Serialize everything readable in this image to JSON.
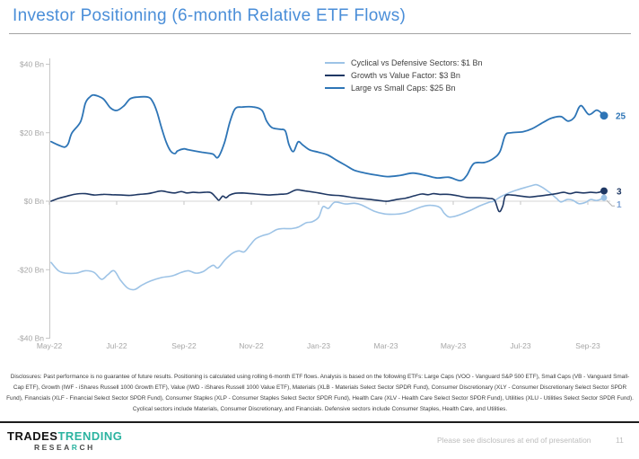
{
  "title": "Investor Positioning (6-month Relative ETF Flows)",
  "chart_data": {
    "type": "line",
    "title": "Investor Positioning (6-month Relative ETF Flows)",
    "grid": false,
    "legend_position": "top-right",
    "x_axis": {
      "tick_labels": [
        "May-22",
        "Jul-22",
        "Sep-22",
        "Nov-22",
        "Jan-23",
        "Mar-23",
        "May-23",
        "Jul-23",
        "Sep-23"
      ],
      "months_per_tick": 2,
      "range_months": [
        0,
        16.9
      ]
    },
    "y_axis": {
      "tick_labels": [
        "$40 Bn",
        "$20 Bn",
        "$0 Bn",
        "-$20 Bn",
        "-$40 Bn"
      ],
      "tick_values": [
        40,
        20,
        0,
        -20,
        -40
      ],
      "ylim": [
        -40,
        40
      ],
      "unit": "$ Bn"
    },
    "series": [
      {
        "name": "Cyclical vs Defensive Sectors",
        "legend_label": "Cyclical vs Defensive Sectors:  $1 Bn",
        "current_value_bn": 1,
        "end_label": "1",
        "color": "#9DC3E6",
        "label_color": "#7DA2D4",
        "stroke_width": 1.6,
        "dot_radius": 3.4,
        "leader": true,
        "label_dx": 14,
        "label_dy": 11,
        "points": [
          [
            0.05,
            -17.9
          ],
          [
            0.27,
            -20.3
          ],
          [
            0.48,
            -21
          ],
          [
            0.8,
            -21
          ],
          [
            1.07,
            -20.3
          ],
          [
            1.33,
            -20.8
          ],
          [
            1.55,
            -22.8
          ],
          [
            1.73,
            -21.5
          ],
          [
            1.92,
            -20.3
          ],
          [
            2.11,
            -23
          ],
          [
            2.32,
            -25.3
          ],
          [
            2.53,
            -25.8
          ],
          [
            2.75,
            -24.5
          ],
          [
            3.01,
            -23.3
          ],
          [
            3.33,
            -22.3
          ],
          [
            3.65,
            -21.8
          ],
          [
            3.92,
            -20.8
          ],
          [
            4.13,
            -20.3
          ],
          [
            4.35,
            -21
          ],
          [
            4.56,
            -20.6
          ],
          [
            4.75,
            -19.3
          ],
          [
            4.88,
            -18.7
          ],
          [
            5.01,
            -19.5
          ],
          [
            5.23,
            -17
          ],
          [
            5.44,
            -15.2
          ],
          [
            5.63,
            -14.5
          ],
          [
            5.79,
            -14.8
          ],
          [
            5.95,
            -13
          ],
          [
            6.13,
            -11
          ],
          [
            6.35,
            -10
          ],
          [
            6.53,
            -9.5
          ],
          [
            6.75,
            -8.3
          ],
          [
            6.93,
            -8
          ],
          [
            7.2,
            -8
          ],
          [
            7.41,
            -7.5
          ],
          [
            7.63,
            -6.3
          ],
          [
            7.81,
            -6
          ],
          [
            8.0,
            -4.7
          ],
          [
            8.13,
            -1.6
          ],
          [
            8.29,
            -2.1
          ],
          [
            8.48,
            -0.3
          ],
          [
            8.8,
            -0.8
          ],
          [
            9.07,
            -0.6
          ],
          [
            9.28,
            -1.1
          ],
          [
            9.65,
            -2.9
          ],
          [
            9.95,
            -3.7
          ],
          [
            10.27,
            -3.8
          ],
          [
            10.53,
            -3.5
          ],
          [
            10.72,
            -2.9
          ],
          [
            11.07,
            -1.6
          ],
          [
            11.33,
            -1.2
          ],
          [
            11.6,
            -1.8
          ],
          [
            11.73,
            -3.5
          ],
          [
            11.87,
            -4.6
          ],
          [
            12.05,
            -4.4
          ],
          [
            12.21,
            -3.9
          ],
          [
            12.53,
            -2.6
          ],
          [
            12.8,
            -1.3
          ],
          [
            13.07,
            -0.3
          ],
          [
            13.2,
            0
          ],
          [
            13.41,
            1.3
          ],
          [
            13.65,
            2.4
          ],
          [
            13.87,
            3.2
          ],
          [
            14.13,
            4
          ],
          [
            14.35,
            4.6
          ],
          [
            14.48,
            4.8
          ],
          [
            14.67,
            3.9
          ],
          [
            14.88,
            2.4
          ],
          [
            15.07,
            0.8
          ],
          [
            15.2,
            -0.2
          ],
          [
            15.39,
            0.5
          ],
          [
            15.55,
            0.3
          ],
          [
            15.73,
            -0.7
          ],
          [
            15.92,
            -0.4
          ],
          [
            16.08,
            0.5
          ],
          [
            16.27,
            0.2
          ],
          [
            16.48,
            1
          ]
        ]
      },
      {
        "name": "Growth vs Value Factor",
        "legend_label": "Growth vs Value Factor:  $3 Bn",
        "current_value_bn": 3,
        "end_label": "3",
        "color": "#1F3864",
        "label_color": "#1F3864",
        "stroke_width": 1.6,
        "dot_radius": 4,
        "leader": false,
        "label_dx": 14,
        "label_dy": 4,
        "points": [
          [
            0.05,
            0
          ],
          [
            0.27,
            0.8
          ],
          [
            0.53,
            1.5
          ],
          [
            0.8,
            2.1
          ],
          [
            1.07,
            2.2
          ],
          [
            1.33,
            1.8
          ],
          [
            1.6,
            2
          ],
          [
            1.87,
            1.9
          ],
          [
            2.13,
            1.8
          ],
          [
            2.4,
            1.7
          ],
          [
            2.67,
            2
          ],
          [
            2.93,
            2.2
          ],
          [
            3.12,
            2.6
          ],
          [
            3.33,
            3
          ],
          [
            3.55,
            2.6
          ],
          [
            3.73,
            2.4
          ],
          [
            3.92,
            2.8
          ],
          [
            4.08,
            2.4
          ],
          [
            4.27,
            2.6
          ],
          [
            4.45,
            2.5
          ],
          [
            4.61,
            2.6
          ],
          [
            4.8,
            2.5
          ],
          [
            4.96,
            1
          ],
          [
            5.04,
            0.3
          ],
          [
            5.15,
            1.5
          ],
          [
            5.25,
            1
          ],
          [
            5.36,
            1.8
          ],
          [
            5.52,
            2.3
          ],
          [
            5.73,
            2.4
          ],
          [
            6.0,
            2.2
          ],
          [
            6.27,
            2
          ],
          [
            6.53,
            1.8
          ],
          [
            6.8,
            2
          ],
          [
            7.07,
            2.2
          ],
          [
            7.33,
            3.3
          ],
          [
            7.6,
            3
          ],
          [
            8.0,
            2.4
          ],
          [
            8.35,
            1.8
          ],
          [
            8.67,
            1.6
          ],
          [
            9.07,
            1
          ],
          [
            9.55,
            0.5
          ],
          [
            9.87,
            0.1
          ],
          [
            10.05,
            0
          ],
          [
            10.32,
            0.5
          ],
          [
            10.59,
            0.9
          ],
          [
            10.85,
            1.6
          ],
          [
            11.07,
            2.1
          ],
          [
            11.25,
            1.9
          ],
          [
            11.41,
            2.2
          ],
          [
            11.6,
            2
          ],
          [
            11.87,
            2
          ],
          [
            12.13,
            1.6
          ],
          [
            12.4,
            1.1
          ],
          [
            12.8,
            1
          ],
          [
            13.07,
            0.8
          ],
          [
            13.23,
            0.3
          ],
          [
            13.36,
            -3
          ],
          [
            13.47,
            -1.5
          ],
          [
            13.55,
            1.6
          ],
          [
            13.73,
            1.8
          ],
          [
            14.0,
            1.5
          ],
          [
            14.27,
            1.2
          ],
          [
            14.53,
            1.5
          ],
          [
            14.8,
            1.8
          ],
          [
            15.07,
            2.2
          ],
          [
            15.28,
            2.6
          ],
          [
            15.47,
            2.2
          ],
          [
            15.65,
            2.6
          ],
          [
            15.87,
            2.4
          ],
          [
            16.08,
            2.6
          ],
          [
            16.27,
            2.5
          ],
          [
            16.48,
            3
          ]
        ]
      },
      {
        "name": "Large vs Small Caps",
        "legend_label": "Large vs Small Caps:  $25 Bn",
        "current_value_bn": 25,
        "end_label": "25",
        "color": "#2E75B6",
        "label_color": "#2E75B6",
        "stroke_width": 1.8,
        "dot_radius": 4.5,
        "leader": false,
        "label_dx": 13,
        "label_dy": 4,
        "points": [
          [
            0.05,
            17.4
          ],
          [
            0.27,
            16.4
          ],
          [
            0.45,
            15.8
          ],
          [
            0.56,
            16.8
          ],
          [
            0.67,
            19.9
          ],
          [
            0.93,
            23.3
          ],
          [
            1.07,
            28.6
          ],
          [
            1.2,
            30.4
          ],
          [
            1.33,
            31
          ],
          [
            1.6,
            29.9
          ],
          [
            1.81,
            27.3
          ],
          [
            2.0,
            26.5
          ],
          [
            2.21,
            27.8
          ],
          [
            2.4,
            29.9
          ],
          [
            2.61,
            30.4
          ],
          [
            2.93,
            30.4
          ],
          [
            3.07,
            29.1
          ],
          [
            3.2,
            26
          ],
          [
            3.33,
            21.5
          ],
          [
            3.47,
            17.3
          ],
          [
            3.6,
            14.7
          ],
          [
            3.73,
            13.9
          ],
          [
            3.81,
            14.7
          ],
          [
            4.0,
            15.3
          ],
          [
            4.13,
            15
          ],
          [
            4.53,
            14.3
          ],
          [
            4.85,
            13.8
          ],
          [
            5.01,
            12.8
          ],
          [
            5.2,
            17
          ],
          [
            5.36,
            23
          ],
          [
            5.52,
            27
          ],
          [
            5.73,
            27.5
          ],
          [
            6.08,
            27.5
          ],
          [
            6.32,
            26.5
          ],
          [
            6.45,
            23.5
          ],
          [
            6.61,
            21.5
          ],
          [
            6.85,
            21
          ],
          [
            7.01,
            20.5
          ],
          [
            7.12,
            16.5
          ],
          [
            7.25,
            14.5
          ],
          [
            7.39,
            17.3
          ],
          [
            7.52,
            16.5
          ],
          [
            7.73,
            15
          ],
          [
            8.0,
            14.3
          ],
          [
            8.27,
            13.5
          ],
          [
            8.53,
            12
          ],
          [
            8.8,
            10.5
          ],
          [
            9.07,
            9
          ],
          [
            9.39,
            8.2
          ],
          [
            9.73,
            7.6
          ],
          [
            10.05,
            7.2
          ],
          [
            10.4,
            7.5
          ],
          [
            10.8,
            8.2
          ],
          [
            11.2,
            7.5
          ],
          [
            11.52,
            6.8
          ],
          [
            11.87,
            7
          ],
          [
            12.21,
            6
          ],
          [
            12.4,
            7.5
          ],
          [
            12.61,
            11
          ],
          [
            12.93,
            11.3
          ],
          [
            13.2,
            12.5
          ],
          [
            13.39,
            14.5
          ],
          [
            13.55,
            19.3
          ],
          [
            13.73,
            20
          ],
          [
            14.08,
            20.3
          ],
          [
            14.35,
            21.2
          ],
          [
            14.67,
            23
          ],
          [
            14.93,
            24.3
          ],
          [
            15.2,
            24.7
          ],
          [
            15.41,
            23.4
          ],
          [
            15.6,
            24.5
          ],
          [
            15.79,
            27.9
          ],
          [
            16.03,
            25.3
          ],
          [
            16.27,
            26.6
          ],
          [
            16.48,
            25
          ]
        ]
      }
    ]
  },
  "disclosures": "Disclosures: Past performance is no guarantee of future results. Positioning is calculated using rolling 6-month ETF flows. Analysis is based on the following ETFs: Large Caps (VOO - Vanguard S&P 500 ETF), Small Caps (VB - Vanguard Small-Cap ETF), Growth (IWF - iShares Russell 1000 Growth ETF), Value (IWD - iShares Russell 1000 Value ETF), Materials (XLB - Materials Select Sector SPDR Fund), Consumer Discretionary (XLY - Consumer Discretionary Select Sector SPDR Fund), Financials (XLF - Financial Select Sector SPDR Fund), Consumer Staples (XLP - Consumer Staples Select Sector SPDR Fund), Health Care (XLV - Health Care Select Sector SPDR Fund), Utilities (XLU - Utilities Select Sector SPDR Fund). Cyclical sectors include Materials, Consumer Discretionary, and Financials. Defensive sectors include Consumer Staples, Health Care, and Utilities.",
  "footer": {
    "logo": {
      "word1": "TRADES",
      "word2": "TRENDING",
      "line2_part1": "RESEA",
      "line2_accent": "R",
      "line2_part2": "CH"
    },
    "note": "Please see disclosures at end of presentation",
    "page_number": "11"
  },
  "colors": {
    "title": "#4A8ED8",
    "axis_text": "#A6A6A6",
    "axis_line": "#C6C6C6",
    "zero_line": "#D6D6D6",
    "series_cyclical": "#9DC3E6",
    "series_growth": "#1F3864",
    "series_large": "#2E75B6",
    "leader_line": "#AFAFAF",
    "disclosure_text": "#3D3D3D",
    "footer_rule": "#1C1C1C",
    "footer_note": "#BCBCBC",
    "logo_dark": "#141414",
    "logo_teal": "#2BB3A0"
  }
}
